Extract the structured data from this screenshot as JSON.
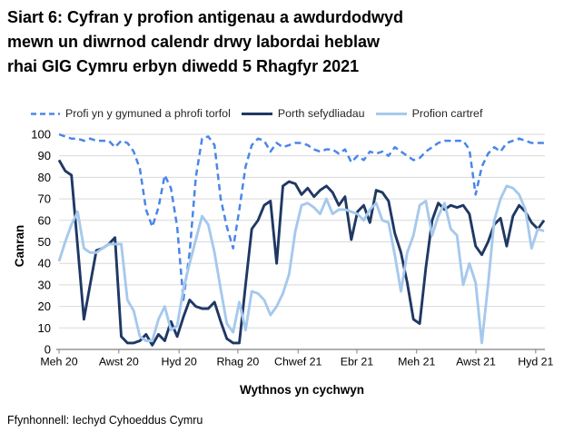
{
  "title": {
    "lines": [
      "Siart 6: Cyfran y profion antigenau a awdurdodwyd",
      "mewn un diwrnod calendr drwy labordai heblaw",
      "rhai GIG Cymru erbyn diwedd 5 Rhagfyr 2021"
    ]
  },
  "source": "Ffynhonnell: Iechyd Cyhoeddus Cymru",
  "chart_data": {
    "type": "line",
    "title": "Siart 6: Cyfran y profion antigenau a awdurdodwyd mewn un diwrnod calendr drwy labordai heblaw rhai GIG Cymru erbyn diwedd 5 Rhagfyr 2021",
    "xlabel": "Wythnos yn cychwyn",
    "ylabel": "Canran",
    "ylim": [
      0,
      100
    ],
    "yticks": [
      0,
      10,
      20,
      30,
      40,
      50,
      60,
      70,
      80,
      90,
      100
    ],
    "grid": true,
    "grid_color": "#D9D9D9",
    "axis_color": "#808080",
    "legend_position": "top",
    "x_unit": "week",
    "xticks": [
      {
        "label": "Meh 20",
        "pos": 0.0
      },
      {
        "label": "Awst 20",
        "pos": 0.123
      },
      {
        "label": "Hyd 20",
        "pos": 0.247
      },
      {
        "label": "Rhag 20",
        "pos": 0.368
      },
      {
        "label": "Chwef 21",
        "pos": 0.492
      },
      {
        "label": "Ebr 21",
        "pos": 0.613
      },
      {
        "label": "Meh 21",
        "pos": 0.736
      },
      {
        "label": "Awst 21",
        "pos": 0.858
      },
      {
        "label": "Hyd 21",
        "pos": 0.981
      }
    ],
    "series": [
      {
        "name": "Profi yn y gymuned a phrofi torfol",
        "color": "#4A86E8",
        "style": "dashed",
        "values": [
          100,
          99,
          98,
          98,
          97,
          98,
          97,
          97,
          97,
          94,
          97,
          96,
          92,
          84,
          65,
          57,
          66,
          81,
          75,
          57,
          23,
          45,
          80,
          98,
          99,
          95,
          70,
          57,
          47,
          65,
          85,
          95,
          98,
          97,
          92,
          96,
          94,
          95,
          96,
          96,
          95,
          93,
          92,
          93,
          93,
          91,
          93,
          87,
          90,
          88,
          92,
          91,
          92,
          90,
          94,
          92,
          90,
          88,
          89,
          92,
          94,
          96,
          97,
          97,
          97,
          97,
          93,
          72,
          85,
          91,
          94,
          92,
          96,
          97,
          98,
          97,
          96,
          96,
          96
        ]
      },
      {
        "name": "Porth sefydliadau",
        "color": "#1F3864",
        "style": "solid",
        "values": [
          88,
          83,
          81,
          48,
          14,
          30,
          46,
          47,
          49,
          52,
          6,
          3,
          3,
          4,
          7,
          2,
          7,
          4,
          13,
          6,
          15,
          23,
          20,
          19,
          19,
          22,
          13,
          5,
          3,
          3,
          30,
          56,
          60,
          67,
          69,
          40,
          76,
          78,
          77,
          72,
          75,
          71,
          74,
          76,
          73,
          67,
          71,
          51,
          64,
          67,
          59,
          74,
          73,
          69,
          54,
          45,
          31,
          14,
          12,
          38,
          60,
          68,
          65,
          67,
          66,
          67,
          63,
          48,
          44,
          50,
          58,
          61,
          48,
          62,
          67,
          64,
          59,
          56,
          60
        ]
      },
      {
        "name": "Profion cartref",
        "color": "#A6C9EC",
        "style": "solid",
        "values": [
          41,
          50,
          58,
          64,
          47,
          45,
          45,
          47,
          49,
          49,
          49,
          23,
          18,
          6,
          4,
          4,
          14,
          20,
          9,
          11,
          28,
          40,
          51,
          62,
          58,
          45,
          28,
          12,
          8,
          22,
          9,
          27,
          26,
          23,
          16,
          20,
          26,
          35,
          55,
          67,
          68,
          66,
          63,
          70,
          63,
          65,
          65,
          64,
          63,
          60,
          65,
          68,
          60,
          59,
          44,
          27,
          45,
          53,
          67,
          69,
          53,
          62,
          68,
          56,
          53,
          30,
          40,
          31,
          3,
          30,
          60,
          70,
          76,
          75,
          72,
          65,
          47,
          56,
          55
        ]
      }
    ]
  }
}
